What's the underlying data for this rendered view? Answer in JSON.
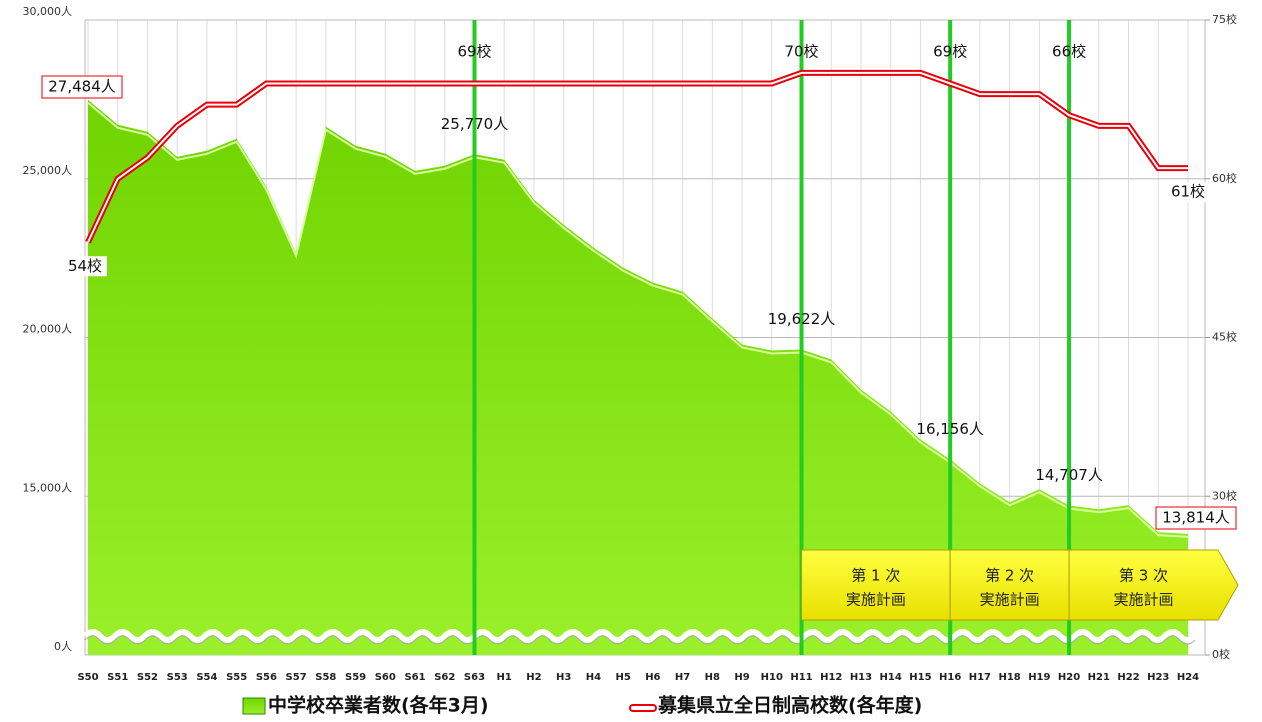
{
  "chart_data": {
    "type": "area_line",
    "categories": [
      "S50",
      "S51",
      "S52",
      "S53",
      "S54",
      "S55",
      "S56",
      "S57",
      "S58",
      "S59",
      "S60",
      "S61",
      "S62",
      "S63",
      "H1",
      "H2",
      "H3",
      "H4",
      "H5",
      "H6",
      "H7",
      "H8",
      "H9",
      "H10",
      "H11",
      "H12",
      "H13",
      "H14",
      "H15",
      "H16",
      "H17",
      "H18",
      "H19",
      "H20",
      "H21",
      "H22",
      "H23",
      "H24"
    ],
    "series": [
      {
        "name": "中学校卒業者数(各年3月)",
        "color": "#7ee000",
        "values": [
          27484,
          26700,
          26480,
          25690,
          25880,
          26260,
          24750,
          22670,
          26640,
          26040,
          25790,
          25250,
          25410,
          25770,
          25600,
          24340,
          23550,
          22830,
          22200,
          21730,
          21450,
          20600,
          19780,
          19590,
          19622,
          19310,
          18360,
          17670,
          16790,
          16156,
          15410,
          14810,
          15220,
          14707,
          14590,
          14720,
          13870,
          13814
        ],
        "value_labels": [
          "27,484人",
          null,
          null,
          null,
          null,
          null,
          null,
          null,
          null,
          null,
          null,
          null,
          null,
          "25,770人",
          null,
          null,
          null,
          null,
          null,
          null,
          null,
          null,
          null,
          null,
          "19,622人",
          null,
          null,
          null,
          null,
          "16,156人",
          null,
          null,
          null,
          "14,707人",
          null,
          null,
          null,
          "13,814人"
        ]
      },
      {
        "name": "募集県立全日制高校数(各年度)",
        "color": "#e8000b",
        "axis": "y2",
        "values": [
          54,
          60,
          62,
          65,
          67,
          67,
          69,
          69,
          69,
          69,
          69,
          69,
          69,
          69,
          69,
          69,
          69,
          69,
          69,
          69,
          69,
          69,
          69,
          69,
          70,
          70,
          70,
          70,
          70,
          69,
          68,
          68,
          68,
          66,
          65,
          65,
          61,
          61
        ],
        "value_labels": [
          "54校",
          null,
          null,
          null,
          null,
          null,
          null,
          null,
          null,
          null,
          null,
          null,
          null,
          "69校",
          null,
          null,
          null,
          null,
          null,
          null,
          null,
          null,
          null,
          null,
          "70校",
          null,
          null,
          null,
          null,
          "69校",
          null,
          null,
          null,
          "66校",
          null,
          null,
          null,
          "61校"
        ]
      }
    ],
    "ylim": [
      0,
      30000
    ],
    "yticks": [
      {
        "value": 0,
        "label": "0人"
      },
      {
        "value": 15000,
        "label": "15,000人"
      },
      {
        "value": 20000,
        "label": "20,000人"
      },
      {
        "value": 25000,
        "label": "25,000人"
      },
      {
        "value": 30000,
        "label": "30,000人"
      }
    ],
    "y2lim": [
      0,
      75
    ],
    "y2ticks": [
      {
        "value": 0,
        "label": "0校"
      },
      {
        "value": 30,
        "label": "30校"
      },
      {
        "value": 45,
        "label": "45校"
      },
      {
        "value": 60,
        "label": "60校"
      },
      {
        "value": 75,
        "label": "75校"
      }
    ],
    "axis_break": true,
    "grid": true,
    "markers": [
      "S63",
      "H11",
      "H16",
      "H20"
    ],
    "phases": [
      [
        "第 1 次",
        "実施計画"
      ],
      [
        "第 2 次",
        "実施計画"
      ],
      [
        "第 3 次",
        "実施計画"
      ]
    ]
  }
}
